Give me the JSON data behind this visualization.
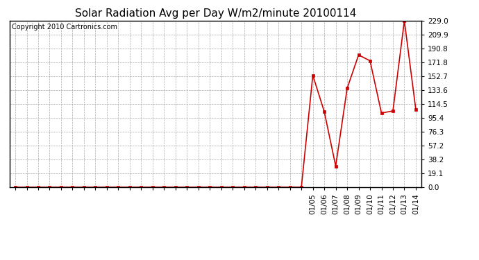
{
  "title": "Solar Radiation Avg per Day W/m2/minute 20100114",
  "copyright_text": "Copyright 2010 Cartronics.com",
  "x_labels": [
    "01/05",
    "01/06",
    "01/07",
    "01/08",
    "01/09",
    "01/10",
    "01/11",
    "01/12",
    "01/13",
    "01/14"
  ],
  "y_ticks": [
    0.0,
    19.1,
    38.2,
    57.2,
    76.3,
    95.4,
    114.5,
    133.6,
    152.7,
    171.8,
    190.8,
    209.9,
    229.0
  ],
  "ylim": [
    0.0,
    229.0
  ],
  "num_unlabeled": 26,
  "data_values": [
    0.0,
    0.0,
    0.0,
    0.0,
    0.0,
    0.0,
    0.0,
    0.0,
    0.0,
    0.0,
    0.0,
    0.0,
    0.0,
    0.0,
    0.0,
    0.0,
    0.0,
    0.0,
    0.0,
    0.0,
    0.0,
    0.0,
    0.0,
    0.0,
    0.0,
    0.0,
    154.0,
    104.0,
    29.0,
    136.0,
    182.0,
    174.0,
    102.0,
    105.0,
    229.0,
    107.0
  ],
  "line_color": "#cc0000",
  "marker_color": "#cc0000",
  "background_color": "#ffffff",
  "grid_color": "#aaaaaa",
  "title_fontsize": 11,
  "tick_fontsize": 7.5,
  "copyright_fontsize": 7
}
